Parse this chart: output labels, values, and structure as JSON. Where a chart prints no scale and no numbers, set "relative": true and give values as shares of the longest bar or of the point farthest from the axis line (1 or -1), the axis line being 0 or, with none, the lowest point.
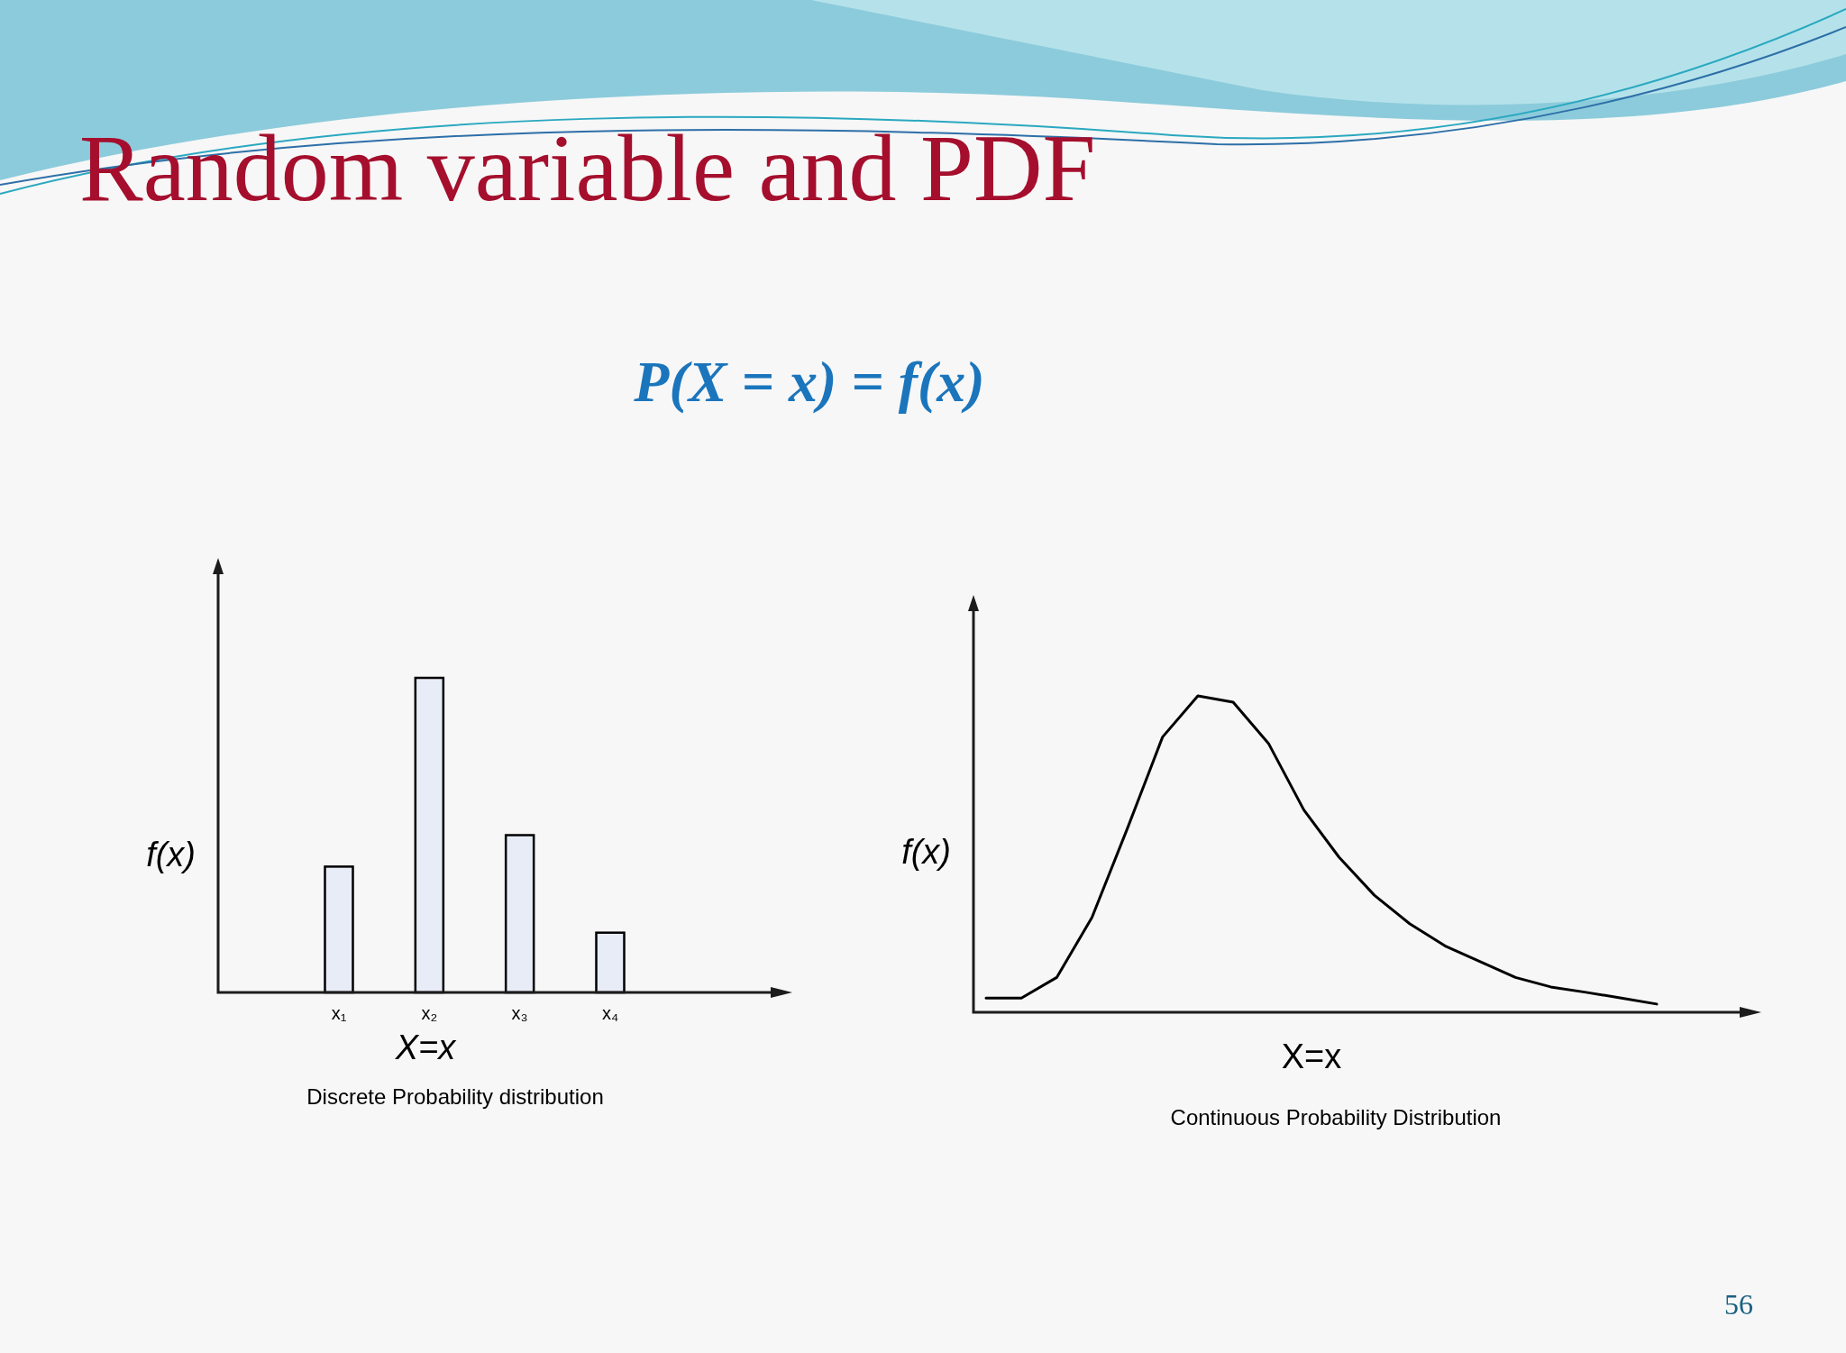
{
  "chart_data": [
    {
      "type": "bar",
      "title": "Random variable and PDF",
      "subtitle": "P(X = x) = f(x)",
      "xlabel": "X=x",
      "ylabel": "f(x)",
      "relative": true,
      "categories": [
        "x₁",
        "x₂",
        "x₃",
        "x₄"
      ],
      "values": [
        0.4,
        1,
        0.5,
        0.19
      ],
      "color": "#e8ecf7",
      "annotations": [
        "Discrete Probability distribution"
      ]
    },
    {
      "type": "line",
      "xlabel": "X=x",
      "ylabel": "f(x)",
      "relative": true,
      "categories": [
        null,
        null,
        null,
        null,
        null,
        null,
        null,
        null,
        null,
        null,
        null,
        null,
        null,
        null,
        null,
        null,
        null,
        null,
        null,
        null
      ],
      "series": [
        {
          "color": "#000000",
          "values": [
            0.045,
            0.045,
            0.11,
            0.3,
            0.58,
            0.87,
            1,
            0.98,
            0.85,
            0.64,
            0.49,
            0.37,
            0.28,
            0.21,
            0.16,
            0.11,
            0.08,
            0.063,
            0.045,
            0.026
          ]
        }
      ],
      "annotations": [
        "Continuous Probability Distribution",
        "56"
      ]
    }
  ]
}
